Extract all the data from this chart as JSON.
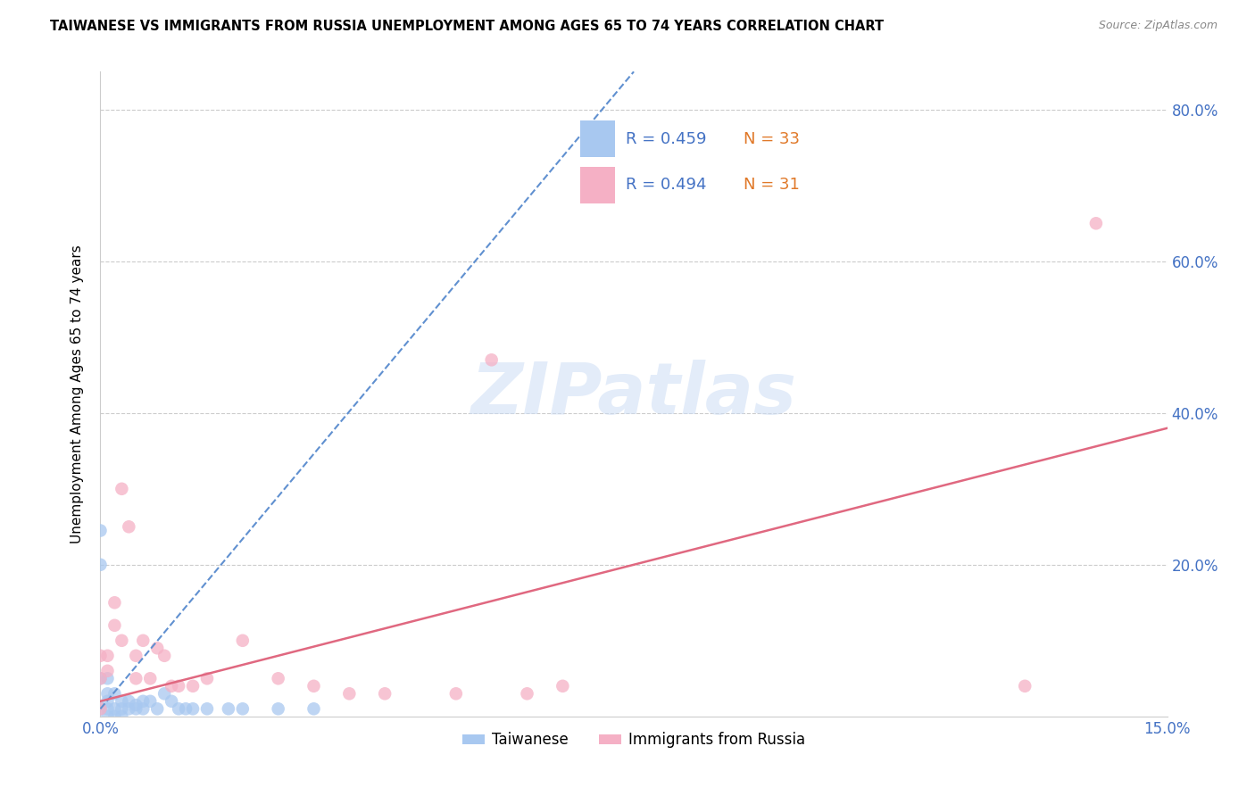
{
  "title": "TAIWANESE VS IMMIGRANTS FROM RUSSIA UNEMPLOYMENT AMONG AGES 65 TO 74 YEARS CORRELATION CHART",
  "source": "Source: ZipAtlas.com",
  "ylabel": "Unemployment Among Ages 65 to 74 years",
  "xlim": [
    0,
    0.15
  ],
  "ylim": [
    0,
    0.85
  ],
  "yticks": [
    0.0,
    0.2,
    0.4,
    0.6,
    0.8
  ],
  "xticks": [
    0.0,
    0.05,
    0.1,
    0.15
  ],
  "xtick_labels": [
    "0.0%",
    "",
    "",
    "15.0%"
  ],
  "ytick_right_labels": [
    "",
    "20.0%",
    "40.0%",
    "60.0%",
    "80.0%"
  ],
  "legend_r1": "R = 0.459",
  "legend_n1": "N = 33",
  "legend_r2": "R = 0.494",
  "legend_n2": "N = 31",
  "color_taiwanese": "#a8c8f0",
  "color_russia": "#f5b0c5",
  "color_trend_taiwanese": "#6090d0",
  "color_trend_russia": "#e06880",
  "color_axis_labels": "#4472c4",
  "color_N": "#e07828",
  "watermark": "ZIPatlas",
  "grid_color": "#cccccc",
  "taiwanese_x": [
    0.0,
    0.0,
    0.0,
    0.0,
    0.001,
    0.001,
    0.001,
    0.001,
    0.001,
    0.002,
    0.002,
    0.002,
    0.003,
    0.003,
    0.003,
    0.004,
    0.004,
    0.005,
    0.005,
    0.006,
    0.006,
    0.007,
    0.008,
    0.009,
    0.01,
    0.011,
    0.012,
    0.013,
    0.015,
    0.018,
    0.02,
    0.025,
    0.03
  ],
  "taiwanese_y": [
    0.245,
    0.2,
    0.05,
    0.01,
    0.05,
    0.03,
    0.02,
    0.01,
    0.0,
    0.03,
    0.01,
    0.0,
    0.02,
    0.01,
    0.0,
    0.02,
    0.01,
    0.015,
    0.01,
    0.01,
    0.02,
    0.02,
    0.01,
    0.03,
    0.02,
    0.01,
    0.01,
    0.01,
    0.01,
    0.01,
    0.01,
    0.01,
    0.01
  ],
  "russia_x": [
    0.0,
    0.0,
    0.0,
    0.001,
    0.001,
    0.002,
    0.002,
    0.003,
    0.003,
    0.004,
    0.005,
    0.005,
    0.006,
    0.007,
    0.008,
    0.009,
    0.01,
    0.011,
    0.013,
    0.015,
    0.02,
    0.025,
    0.03,
    0.035,
    0.04,
    0.05,
    0.055,
    0.06,
    0.065,
    0.13,
    0.14
  ],
  "russia_y": [
    0.01,
    0.05,
    0.08,
    0.06,
    0.08,
    0.12,
    0.15,
    0.1,
    0.3,
    0.25,
    0.08,
    0.05,
    0.1,
    0.05,
    0.09,
    0.08,
    0.04,
    0.04,
    0.04,
    0.05,
    0.1,
    0.05,
    0.04,
    0.03,
    0.03,
    0.03,
    0.47,
    0.03,
    0.04,
    0.04,
    0.65
  ],
  "tw_trend_x0": 0.0,
  "tw_trend_y0": 0.01,
  "tw_trend_x1": 0.075,
  "tw_trend_y1": 0.85,
  "ru_trend_x0": 0.0,
  "ru_trend_y0": 0.02,
  "ru_trend_x1": 0.15,
  "ru_trend_y1": 0.38
}
